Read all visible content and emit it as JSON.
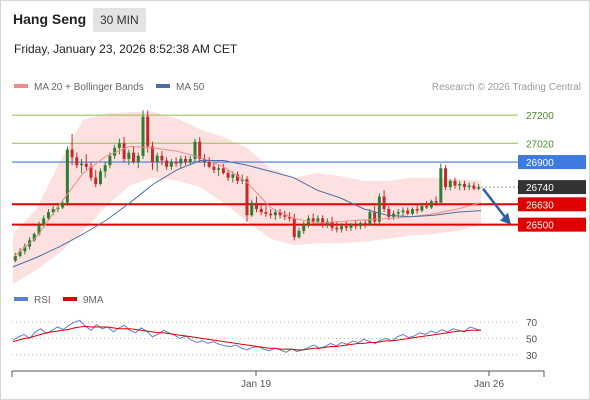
{
  "header": {
    "title": "Hang Seng",
    "timeframe": "30 MIN",
    "timestamp": "Friday, January 23, 2026 8:52:38 AM CET"
  },
  "legend": {
    "bollinger": "MA 20 + Bollinger Bands",
    "ma50": "MA 50",
    "credit": "Research © 2026 Trading Central"
  },
  "rsi_legend": {
    "rsi": "RSI",
    "ma9": "9MA"
  },
  "colors": {
    "bull": "#2e7d32",
    "bear": "#c62828",
    "band_fill": "#fde1e1",
    "ma20": "#f08a8a",
    "ma50": "#4a6fa5",
    "resistance": "#8bc34a",
    "pivot": "#3d7be0",
    "support": "#e00000",
    "last": "#333333",
    "rsi": "#5b7fd0",
    "rsi_ma": "#e00000"
  },
  "chart_data": [
    {
      "type": "candlestick",
      "title": "Hang Seng",
      "xlabel": "",
      "ylabel": "",
      "ylim": [
        26140,
        27290
      ],
      "x_ticks": [
        "Jan 19",
        "Jan 26"
      ],
      "series": [
        {
          "name": "MA 20 + Bollinger Bands"
        },
        {
          "name": "MA 50"
        }
      ],
      "bollinger": {
        "upper": [
          26440,
          26600,
          26900,
          27170,
          27210,
          27220,
          27220,
          27180,
          27110,
          27060,
          26990,
          26860,
          26800,
          26830,
          26810,
          26780,
          26780,
          26800,
          26800,
          26790,
          26780
        ],
        "middle": [
          26290,
          26420,
          26630,
          26830,
          26940,
          27000,
          26990,
          26970,
          26930,
          26870,
          26770,
          26610,
          26540,
          26510,
          26520,
          26530,
          26540,
          26550,
          26570,
          26600,
          26640
        ],
        "lower": [
          26120,
          26210,
          26320,
          26460,
          26620,
          26750,
          26800,
          26780,
          26740,
          26640,
          26520,
          26410,
          26370,
          26380,
          26380,
          26390,
          26410,
          26430,
          26440,
          26460,
          26500
        ]
      },
      "ma50": [
        26230,
        26290,
        26360,
        26440,
        26530,
        26640,
        26760,
        26850,
        26910,
        26910,
        26880,
        26840,
        26800,
        26720,
        26670,
        26600,
        26560,
        26550,
        26560,
        26580,
        26590
      ],
      "candles": [
        {
          "o": 26270,
          "h": 26320,
          "l": 26260,
          "c": 26300
        },
        {
          "o": 26300,
          "h": 26350,
          "l": 26290,
          "c": 26330
        },
        {
          "o": 26330,
          "h": 26380,
          "l": 26310,
          "c": 26360
        },
        {
          "o": 26360,
          "h": 26420,
          "l": 26340,
          "c": 26400
        },
        {
          "o": 26400,
          "h": 26450,
          "l": 26390,
          "c": 26440
        },
        {
          "o": 26440,
          "h": 26520,
          "l": 26430,
          "c": 26500
        },
        {
          "o": 26500,
          "h": 26560,
          "l": 26480,
          "c": 26540
        },
        {
          "o": 26540,
          "h": 26600,
          "l": 26530,
          "c": 26580
        },
        {
          "o": 26580,
          "h": 26620,
          "l": 26560,
          "c": 26600
        },
        {
          "o": 26600,
          "h": 26640,
          "l": 26580,
          "c": 26610
        },
        {
          "o": 26610,
          "h": 26660,
          "l": 26600,
          "c": 26640
        },
        {
          "o": 26640,
          "h": 27000,
          "l": 26620,
          "c": 26980
        },
        {
          "o": 26980,
          "h": 27080,
          "l": 26880,
          "c": 26930
        },
        {
          "o": 26930,
          "h": 26960,
          "l": 26860,
          "c": 26880
        },
        {
          "o": 26880,
          "h": 26920,
          "l": 26830,
          "c": 26890
        },
        {
          "o": 26890,
          "h": 26950,
          "l": 26850,
          "c": 26870
        },
        {
          "o": 26870,
          "h": 26900,
          "l": 26780,
          "c": 26800
        },
        {
          "o": 26800,
          "h": 26850,
          "l": 26740,
          "c": 26760
        },
        {
          "o": 26760,
          "h": 26860,
          "l": 26750,
          "c": 26840
        },
        {
          "o": 26840,
          "h": 26900,
          "l": 26800,
          "c": 26880
        },
        {
          "o": 26880,
          "h": 26960,
          "l": 26860,
          "c": 26940
        },
        {
          "o": 26940,
          "h": 27010,
          "l": 26920,
          "c": 26990
        },
        {
          "o": 26990,
          "h": 27050,
          "l": 26950,
          "c": 27020
        },
        {
          "o": 27020,
          "h": 27060,
          "l": 26900,
          "c": 26920
        },
        {
          "o": 26920,
          "h": 26980,
          "l": 26880,
          "c": 26960
        },
        {
          "o": 26960,
          "h": 27000,
          "l": 26890,
          "c": 26900
        },
        {
          "o": 26900,
          "h": 26960,
          "l": 26860,
          "c": 26940
        },
        {
          "o": 26940,
          "h": 27230,
          "l": 26920,
          "c": 27190
        },
        {
          "o": 27190,
          "h": 27230,
          "l": 26960,
          "c": 27000
        },
        {
          "o": 27000,
          "h": 27030,
          "l": 26850,
          "c": 26900
        },
        {
          "o": 26900,
          "h": 26960,
          "l": 26840,
          "c": 26940
        },
        {
          "o": 26940,
          "h": 26970,
          "l": 26880,
          "c": 26910
        },
        {
          "o": 26910,
          "h": 26930,
          "l": 26850,
          "c": 26870
        },
        {
          "o": 26870,
          "h": 26920,
          "l": 26850,
          "c": 26900
        },
        {
          "o": 26900,
          "h": 26930,
          "l": 26870,
          "c": 26890
        },
        {
          "o": 26890,
          "h": 26940,
          "l": 26860,
          "c": 26920
        },
        {
          "o": 26920,
          "h": 26940,
          "l": 26880,
          "c": 26900
        },
        {
          "o": 26900,
          "h": 26940,
          "l": 26880,
          "c": 26920
        },
        {
          "o": 26920,
          "h": 27050,
          "l": 26900,
          "c": 27030
        },
        {
          "o": 27030,
          "h": 27060,
          "l": 26900,
          "c": 26920
        },
        {
          "o": 26920,
          "h": 26950,
          "l": 26870,
          "c": 26900
        },
        {
          "o": 26900,
          "h": 26930,
          "l": 26860,
          "c": 26870
        },
        {
          "o": 26870,
          "h": 26900,
          "l": 26830,
          "c": 26850
        },
        {
          "o": 26850,
          "h": 26880,
          "l": 26810,
          "c": 26860
        },
        {
          "o": 26860,
          "h": 26890,
          "l": 26820,
          "c": 26830
        },
        {
          "o": 26830,
          "h": 26850,
          "l": 26780,
          "c": 26800
        },
        {
          "o": 26800,
          "h": 26840,
          "l": 26770,
          "c": 26820
        },
        {
          "o": 26820,
          "h": 26840,
          "l": 26760,
          "c": 26780
        },
        {
          "o": 26780,
          "h": 26820,
          "l": 26760,
          "c": 26790
        },
        {
          "o": 26790,
          "h": 26810,
          "l": 26520,
          "c": 26560
        },
        {
          "o": 26560,
          "h": 26660,
          "l": 26550,
          "c": 26640
        },
        {
          "o": 26640,
          "h": 26680,
          "l": 26580,
          "c": 26600
        },
        {
          "o": 26600,
          "h": 26630,
          "l": 26560,
          "c": 26580
        },
        {
          "o": 26580,
          "h": 26620,
          "l": 26550,
          "c": 26570
        },
        {
          "o": 26570,
          "h": 26600,
          "l": 26540,
          "c": 26560
        },
        {
          "o": 26560,
          "h": 26600,
          "l": 26530,
          "c": 26580
        },
        {
          "o": 26580,
          "h": 26600,
          "l": 26540,
          "c": 26560
        },
        {
          "o": 26560,
          "h": 26590,
          "l": 26530,
          "c": 26550
        },
        {
          "o": 26550,
          "h": 26580,
          "l": 26520,
          "c": 26540
        },
        {
          "o": 26540,
          "h": 26570,
          "l": 26400,
          "c": 26420
        },
        {
          "o": 26420,
          "h": 26480,
          "l": 26410,
          "c": 26460
        },
        {
          "o": 26460,
          "h": 26520,
          "l": 26440,
          "c": 26500
        },
        {
          "o": 26500,
          "h": 26560,
          "l": 26480,
          "c": 26540
        },
        {
          "o": 26540,
          "h": 26570,
          "l": 26500,
          "c": 26520
        },
        {
          "o": 26520,
          "h": 26560,
          "l": 26500,
          "c": 26540
        },
        {
          "o": 26540,
          "h": 26560,
          "l": 26480,
          "c": 26500
        },
        {
          "o": 26500,
          "h": 26540,
          "l": 26480,
          "c": 26520
        },
        {
          "o": 26520,
          "h": 26550,
          "l": 26460,
          "c": 26480
        },
        {
          "o": 26480,
          "h": 26520,
          "l": 26450,
          "c": 26470
        },
        {
          "o": 26470,
          "h": 26510,
          "l": 26450,
          "c": 26490
        },
        {
          "o": 26490,
          "h": 26520,
          "l": 26460,
          "c": 26480
        },
        {
          "o": 26480,
          "h": 26510,
          "l": 26460,
          "c": 26500
        },
        {
          "o": 26500,
          "h": 26530,
          "l": 26470,
          "c": 26490
        },
        {
          "o": 26490,
          "h": 26520,
          "l": 26470,
          "c": 26510
        },
        {
          "o": 26510,
          "h": 26530,
          "l": 26480,
          "c": 26500
        },
        {
          "o": 26500,
          "h": 26600,
          "l": 26490,
          "c": 26580
        },
        {
          "o": 26580,
          "h": 26620,
          "l": 26500,
          "c": 26520
        },
        {
          "o": 26520,
          "h": 26700,
          "l": 26500,
          "c": 26680
        },
        {
          "o": 26680,
          "h": 26720,
          "l": 26580,
          "c": 26600
        },
        {
          "o": 26600,
          "h": 26620,
          "l": 26530,
          "c": 26550
        },
        {
          "o": 26550,
          "h": 26590,
          "l": 26530,
          "c": 26570
        },
        {
          "o": 26570,
          "h": 26600,
          "l": 26540,
          "c": 26580
        },
        {
          "o": 26580,
          "h": 26610,
          "l": 26550,
          "c": 26590
        },
        {
          "o": 26590,
          "h": 26610,
          "l": 26560,
          "c": 26570
        },
        {
          "o": 26570,
          "h": 26610,
          "l": 26560,
          "c": 26600
        },
        {
          "o": 26600,
          "h": 26630,
          "l": 26570,
          "c": 26590
        },
        {
          "o": 26590,
          "h": 26640,
          "l": 26580,
          "c": 26620
        },
        {
          "o": 26620,
          "h": 26650,
          "l": 26600,
          "c": 26610
        },
        {
          "o": 26610,
          "h": 26660,
          "l": 26600,
          "c": 26650
        },
        {
          "o": 26650,
          "h": 26680,
          "l": 26620,
          "c": 26640
        },
        {
          "o": 26640,
          "h": 26890,
          "l": 26640,
          "c": 26860
        },
        {
          "o": 26860,
          "h": 26880,
          "l": 26720,
          "c": 26740
        },
        {
          "o": 26740,
          "h": 26790,
          "l": 26720,
          "c": 26780
        },
        {
          "o": 26780,
          "h": 26800,
          "l": 26730,
          "c": 26750
        },
        {
          "o": 26750,
          "h": 26780,
          "l": 26720,
          "c": 26760
        },
        {
          "o": 26760,
          "h": 26780,
          "l": 26720,
          "c": 26740
        },
        {
          "o": 26740,
          "h": 26770,
          "l": 26720,
          "c": 26750
        },
        {
          "o": 26750,
          "h": 26770,
          "l": 26720,
          "c": 26730
        },
        {
          "o": 26730,
          "h": 26760,
          "l": 26720,
          "c": 26740
        }
      ],
      "levels": [
        {
          "kind": "resistance",
          "value": 27200,
          "label": "27200"
        },
        {
          "kind": "resistance",
          "value": 27020,
          "label": "27020"
        },
        {
          "kind": "pivot",
          "value": 26900,
          "label": "26900"
        },
        {
          "kind": "last",
          "value": 26740,
          "label": "26740"
        },
        {
          "kind": "support",
          "value": 26630,
          "label": "26630"
        },
        {
          "kind": "support",
          "value": 26500,
          "label": "26500"
        }
      ],
      "projection": {
        "from": 26730,
        "to": 26500
      }
    },
    {
      "type": "line",
      "title": "",
      "ylim": [
        15,
        80
      ],
      "y_ticks": [
        70,
        50,
        30
      ],
      "series": [
        {
          "name": "RSI",
          "values": [
            48,
            52,
            55,
            50,
            58,
            62,
            56,
            60,
            64,
            61,
            66,
            70,
            72,
            65,
            60,
            67,
            62,
            64,
            58,
            63,
            66,
            60,
            57,
            63,
            59,
            52,
            55,
            60,
            57,
            54,
            50,
            53,
            48,
            45,
            47,
            44,
            46,
            43,
            41,
            40,
            42,
            38,
            36,
            39,
            40,
            37,
            35,
            38,
            36,
            33,
            37,
            34,
            36,
            39,
            42,
            38,
            40,
            44,
            41,
            45,
            43,
            47,
            45,
            49,
            46,
            44,
            48,
            50,
            47,
            52,
            55,
            51,
            53,
            57,
            55,
            59,
            57,
            61,
            58,
            62,
            60,
            58,
            64,
            62,
            60
          ]
        },
        {
          "name": "9MA",
          "values": [
            46,
            48,
            50,
            51,
            53,
            55,
            57,
            58,
            59,
            60,
            61,
            63,
            64,
            65,
            64,
            64,
            64,
            64,
            63,
            62,
            62,
            62,
            61,
            60,
            59,
            58,
            57,
            57,
            56,
            55,
            54,
            53,
            52,
            51,
            50,
            49,
            48,
            47,
            46,
            45,
            44,
            43,
            42,
            41,
            40,
            39,
            38,
            38,
            37,
            37,
            37,
            36,
            36,
            37,
            38,
            38,
            39,
            40,
            40,
            41,
            42,
            43,
            44,
            44,
            45,
            45,
            46,
            47,
            47,
            48,
            49,
            50,
            51,
            52,
            53,
            54,
            55,
            56,
            57,
            58,
            59,
            59,
            60,
            60,
            60
          ]
        }
      ]
    }
  ]
}
